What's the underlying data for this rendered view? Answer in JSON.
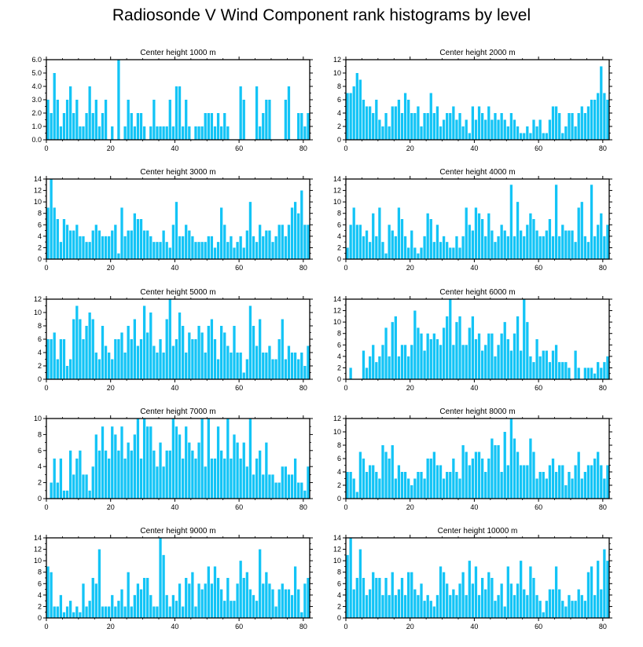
{
  "title": "Radiosonde V Wind Component rank histograms by level",
  "colors": {
    "bar": "#13c4f6",
    "axis": "#000000",
    "background": "#ffffff"
  },
  "chart_data": [
    {
      "type": "bar",
      "title": "Center height 1000 m",
      "xlim": [
        0,
        82
      ],
      "xticks": [
        0,
        20,
        40,
        60,
        80
      ],
      "ylim": [
        0,
        6
      ],
      "yticks": [
        0,
        1,
        2,
        3,
        4,
        5,
        6
      ],
      "ytick_labels": [
        "0.0",
        "1.0",
        "2.0",
        "3.0",
        "4.0",
        "5.0",
        "6.0"
      ],
      "values": [
        3,
        2,
        5,
        3,
        1,
        2,
        3,
        4,
        2,
        3,
        1,
        1,
        2,
        4,
        2,
        3,
        1,
        2,
        3,
        0,
        1,
        0,
        6,
        0,
        1,
        3,
        2,
        1,
        2,
        2,
        1,
        0,
        1,
        3,
        1,
        1,
        1,
        1,
        3,
        1,
        4,
        4,
        1,
        3,
        1,
        0,
        1,
        1,
        1,
        2,
        2,
        2,
        1,
        2,
        1,
        2,
        1,
        0,
        0,
        0,
        4,
        3,
        0,
        0,
        0,
        4,
        1,
        2,
        3,
        3,
        0,
        0,
        0,
        0,
        3,
        4,
        0,
        0,
        2,
        2,
        1,
        2
      ]
    },
    {
      "type": "bar",
      "title": "Center height 2000 m",
      "xlim": [
        0,
        82
      ],
      "xticks": [
        0,
        20,
        40,
        60,
        80
      ],
      "ylim": [
        0,
        12
      ],
      "yticks": [
        0,
        2,
        4,
        6,
        8,
        10,
        12
      ],
      "ytick_labels": [
        "0",
        "2",
        "4",
        "6",
        "8",
        "10",
        "12"
      ],
      "values": [
        7,
        7,
        8,
        10,
        9,
        6,
        5,
        5,
        4,
        6,
        3,
        2,
        4,
        2,
        5,
        5,
        6,
        4,
        7,
        6,
        4,
        4,
        5,
        2,
        4,
        4,
        7,
        4,
        5,
        2,
        3,
        4,
        4,
        5,
        3,
        4,
        2,
        3,
        1,
        5,
        3,
        5,
        4,
        3,
        5,
        3,
        4,
        3,
        4,
        3,
        2,
        4,
        3,
        2,
        1,
        1,
        2,
        1,
        3,
        2,
        3,
        1,
        1,
        3,
        5,
        5,
        4,
        1,
        2,
        4,
        4,
        2,
        4,
        5,
        4,
        5,
        6,
        6,
        7,
        11,
        7,
        6
      ]
    },
    {
      "type": "bar",
      "title": "Center height 3000 m",
      "xlim": [
        0,
        82
      ],
      "xticks": [
        0,
        20,
        40,
        60,
        80
      ],
      "ylim": [
        0,
        14
      ],
      "yticks": [
        0,
        2,
        4,
        6,
        8,
        10,
        12,
        14
      ],
      "ytick_labels": [
        "0",
        "2",
        "4",
        "6",
        "8",
        "10",
        "12",
        "14"
      ],
      "values": [
        9,
        14,
        9,
        7,
        3,
        7,
        6,
        5,
        5,
        6,
        4,
        4,
        3,
        3,
        5,
        6,
        5,
        4,
        4,
        4,
        5,
        6,
        1,
        9,
        4,
        5,
        5,
        8,
        7,
        7,
        5,
        5,
        4,
        3,
        3,
        3,
        5,
        3,
        2,
        6,
        10,
        4,
        4,
        6,
        5,
        4,
        3,
        3,
        3,
        3,
        4,
        4,
        2,
        3,
        9,
        6,
        3,
        4,
        2,
        3,
        4,
        2,
        5,
        10,
        4,
        3,
        6,
        4,
        5,
        5,
        3,
        4,
        6,
        6,
        4,
        6,
        9,
        10,
        8,
        12,
        6,
        6
      ]
    },
    {
      "type": "bar",
      "title": "Center height 4000 m",
      "xlim": [
        0,
        82
      ],
      "xticks": [
        0,
        20,
        40,
        60,
        80
      ],
      "ylim": [
        0,
        14
      ],
      "yticks": [
        0,
        2,
        4,
        6,
        8,
        10,
        12,
        14
      ],
      "ytick_labels": [
        "0",
        "2",
        "4",
        "6",
        "8",
        "10",
        "12",
        "14"
      ],
      "values": [
        2,
        6,
        9,
        6,
        6,
        4,
        5,
        3,
        8,
        4,
        9,
        3,
        1,
        6,
        5,
        4,
        9,
        7,
        4,
        2,
        5,
        2,
        1,
        2,
        4,
        8,
        7,
        3,
        6,
        3,
        4,
        3,
        2,
        2,
        4,
        2,
        4,
        9,
        6,
        5,
        9,
        8,
        7,
        4,
        8,
        5,
        3,
        4,
        6,
        5,
        4,
        13,
        4,
        10,
        5,
        4,
        6,
        8,
        7,
        5,
        4,
        4,
        5,
        7,
        4,
        13,
        4,
        6,
        5,
        5,
        5,
        3,
        9,
        10,
        4,
        3,
        13,
        4,
        6,
        8,
        4,
        6
      ]
    },
    {
      "type": "bar",
      "title": "Center height 5000 m",
      "xlim": [
        0,
        82
      ],
      "xticks": [
        0,
        20,
        40,
        60,
        80
      ],
      "ylim": [
        0,
        12
      ],
      "yticks": [
        0,
        2,
        4,
        6,
        8,
        10,
        12
      ],
      "ytick_labels": [
        "0",
        "2",
        "4",
        "6",
        "8",
        "10",
        "12"
      ],
      "values": [
        6,
        6,
        7,
        3,
        6,
        6,
        2,
        3,
        9,
        11,
        9,
        6,
        8,
        10,
        9,
        4,
        3,
        8,
        5,
        4,
        3,
        6,
        6,
        7,
        4,
        8,
        6,
        9,
        5,
        6,
        11,
        7,
        10,
        5,
        4,
        6,
        4,
        9,
        12,
        5,
        6,
        10,
        8,
        4,
        7,
        6,
        6,
        8,
        7,
        4,
        8,
        9,
        6,
        3,
        8,
        7,
        5,
        4,
        8,
        4,
        4,
        1,
        3,
        11,
        8,
        5,
        9,
        4,
        4,
        5,
        3,
        3,
        6,
        9,
        3,
        5,
        4,
        4,
        3,
        4,
        2,
        5
      ]
    },
    {
      "type": "bar",
      "title": "Center height 6000 m",
      "xlim": [
        0,
        82
      ],
      "xticks": [
        0,
        20,
        40,
        60,
        80
      ],
      "ylim": [
        0,
        14
      ],
      "yticks": [
        0,
        2,
        4,
        6,
        8,
        10,
        12,
        14
      ],
      "ytick_labels": [
        "0",
        "2",
        "4",
        "6",
        "8",
        "10",
        "12",
        "14"
      ],
      "values": [
        0,
        2,
        0,
        0,
        0,
        5,
        2,
        4,
        6,
        3,
        4,
        6,
        9,
        4,
        10,
        11,
        4,
        6,
        6,
        4,
        6,
        12,
        9,
        8,
        5,
        8,
        7,
        8,
        7,
        6,
        9,
        11,
        14,
        6,
        10,
        11,
        6,
        6,
        9,
        11,
        7,
        8,
        5,
        6,
        8,
        8,
        4,
        6,
        8,
        10,
        7,
        5,
        8,
        11,
        5,
        14,
        10,
        4,
        3,
        7,
        4,
        5,
        5,
        3,
        5,
        6,
        3,
        3,
        3,
        2,
        0,
        5,
        2,
        0,
        2,
        2,
        2,
        1,
        3,
        2,
        3,
        4
      ]
    },
    {
      "type": "bar",
      "title": "Center height 7000 m",
      "xlim": [
        0,
        82
      ],
      "xticks": [
        0,
        20,
        40,
        60,
        80
      ],
      "ylim": [
        0,
        10
      ],
      "yticks": [
        0,
        2,
        4,
        6,
        8,
        10
      ],
      "ytick_labels": [
        "0",
        "2",
        "4",
        "6",
        "8",
        "10"
      ],
      "values": [
        0,
        2,
        5,
        2,
        5,
        1,
        1,
        6,
        3,
        5,
        6,
        3,
        3,
        1,
        4,
        8,
        6,
        9,
        6,
        5,
        9,
        8,
        6,
        9,
        5,
        7,
        6,
        8,
        10,
        5,
        10,
        9,
        9,
        6,
        4,
        7,
        4,
        6,
        6,
        10,
        9,
        8,
        5,
        9,
        7,
        6,
        5,
        7,
        10,
        4,
        10,
        5,
        5,
        9,
        6,
        5,
        10,
        5,
        8,
        7,
        5,
        7,
        4,
        10,
        3,
        5,
        6,
        3,
        7,
        3,
        3,
        2,
        2,
        4,
        4,
        3,
        3,
        5,
        2,
        2,
        1,
        4
      ]
    },
    {
      "type": "bar",
      "title": "Center height 8000 m",
      "xlim": [
        0,
        82
      ],
      "xticks": [
        0,
        20,
        40,
        60,
        80
      ],
      "ylim": [
        0,
        12
      ],
      "yticks": [
        0,
        2,
        4,
        6,
        8,
        10,
        12
      ],
      "ytick_labels": [
        "0",
        "2",
        "4",
        "6",
        "8",
        "10",
        "12"
      ],
      "values": [
        4,
        4,
        3,
        1,
        7,
        6,
        4,
        5,
        5,
        4,
        3,
        8,
        7,
        6,
        8,
        3,
        5,
        4,
        4,
        3,
        2,
        3,
        4,
        4,
        3,
        6,
        6,
        7,
        5,
        5,
        3,
        4,
        4,
        6,
        4,
        3,
        8,
        7,
        5,
        6,
        7,
        7,
        6,
        4,
        6,
        9,
        8,
        8,
        4,
        10,
        5,
        12,
        9,
        7,
        5,
        5,
        5,
        9,
        7,
        3,
        4,
        4,
        3,
        5,
        6,
        4,
        5,
        5,
        2,
        4,
        3,
        5,
        7,
        3,
        4,
        5,
        5,
        6,
        7,
        5,
        3,
        5
      ]
    },
    {
      "type": "bar",
      "title": "Center height 9000 m",
      "xlim": [
        0,
        82
      ],
      "xticks": [
        0,
        20,
        40,
        60,
        80
      ],
      "ylim": [
        0,
        14
      ],
      "yticks": [
        0,
        2,
        4,
        6,
        8,
        10,
        12,
        14
      ],
      "ytick_labels": [
        "0",
        "2",
        "4",
        "6",
        "8",
        "10",
        "12",
        "14"
      ],
      "values": [
        9,
        8,
        2,
        2,
        4,
        1,
        2,
        3,
        1,
        2,
        1,
        6,
        2,
        3,
        7,
        6,
        12,
        2,
        2,
        2,
        4,
        2,
        3,
        5,
        2,
        8,
        2,
        4,
        6,
        5,
        7,
        7,
        4,
        2,
        2,
        14,
        11,
        4,
        2,
        4,
        3,
        6,
        2,
        7,
        6,
        8,
        2,
        6,
        5,
        6,
        9,
        6,
        9,
        7,
        5,
        3,
        7,
        3,
        3,
        6,
        10,
        7,
        8,
        5,
        4,
        3,
        12,
        6,
        8,
        6,
        5,
        2,
        5,
        6,
        5,
        5,
        4,
        9,
        5,
        1,
        6,
        7
      ]
    },
    {
      "type": "bar",
      "title": "Center height 10000 m",
      "xlim": [
        0,
        82
      ],
      "xticks": [
        0,
        20,
        40,
        60,
        80
      ],
      "ylim": [
        0,
        14
      ],
      "yticks": [
        0,
        2,
        4,
        6,
        8,
        10,
        12,
        14
      ],
      "ytick_labels": [
        "0",
        "2",
        "4",
        "6",
        "8",
        "10",
        "12",
        "14"
      ],
      "values": [
        11,
        14,
        5,
        7,
        12,
        7,
        4,
        5,
        8,
        7,
        7,
        4,
        7,
        4,
        8,
        4,
        5,
        7,
        4,
        8,
        8,
        5,
        4,
        6,
        3,
        4,
        3,
        2,
        4,
        9,
        8,
        6,
        4,
        5,
        4,
        6,
        8,
        4,
        10,
        6,
        9,
        4,
        7,
        5,
        8,
        7,
        3,
        4,
        6,
        2,
        9,
        6,
        4,
        6,
        10,
        5,
        4,
        9,
        7,
        4,
        3,
        1,
        3,
        5,
        5,
        9,
        5,
        3,
        2,
        4,
        3,
        3,
        5,
        4,
        3,
        8,
        9,
        4,
        10,
        5,
        12,
        10
      ]
    }
  ]
}
